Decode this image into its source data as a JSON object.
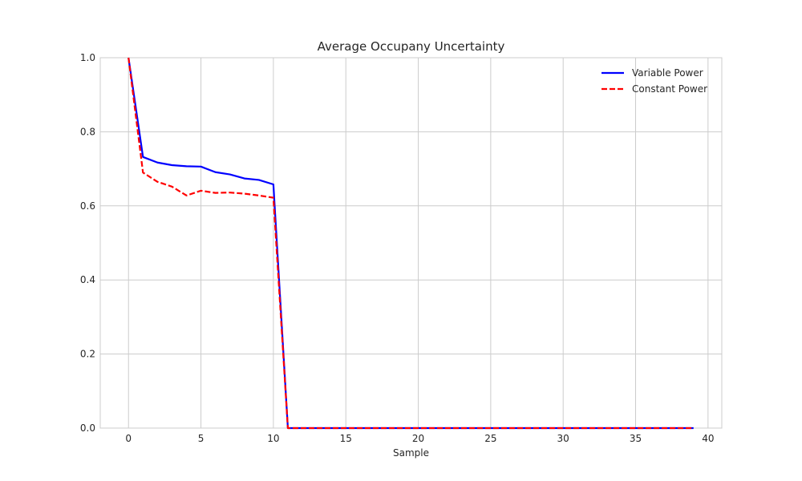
{
  "chart_data": {
    "type": "line",
    "title": "Average Occupany Uncertainty",
    "xlabel": "Sample",
    "ylabel": "",
    "xlim": [
      -1.95,
      40.95
    ],
    "ylim": [
      0.0,
      1.0
    ],
    "xticks": [
      0,
      5,
      10,
      15,
      20,
      25,
      30,
      35,
      40
    ],
    "yticks": [
      0.0,
      0.2,
      0.4,
      0.6,
      0.8,
      1.0
    ],
    "xtick_labels": [
      "0",
      "5",
      "10",
      "15",
      "20",
      "25",
      "30",
      "35",
      "40"
    ],
    "ytick_labels": [
      "0.0",
      "0.2",
      "0.4",
      "0.6",
      "0.8",
      "1.0"
    ],
    "grid": true,
    "legend_position": "top-right",
    "x": [
      0,
      1,
      2,
      3,
      4,
      5,
      6,
      7,
      8,
      9,
      10,
      11,
      12,
      13,
      14,
      15,
      16,
      17,
      18,
      19,
      20,
      21,
      22,
      23,
      24,
      25,
      26,
      27,
      28,
      29,
      30,
      31,
      32,
      33,
      34,
      35,
      36,
      37,
      38,
      39
    ],
    "series": [
      {
        "name": "Variable Power",
        "color": "#0000ff",
        "style": "solid",
        "values": [
          1.0,
          0.732,
          0.717,
          0.71,
          0.707,
          0.706,
          0.691,
          0.685,
          0.674,
          0.67,
          0.658,
          0.0,
          0,
          0,
          0,
          0,
          0,
          0,
          0,
          0,
          0,
          0,
          0,
          0,
          0,
          0,
          0,
          0,
          0,
          0,
          0,
          0,
          0,
          0,
          0,
          0,
          0,
          0,
          0,
          0
        ]
      },
      {
        "name": "Constant Power",
        "color": "#ff0000",
        "style": "dashed",
        "values": [
          1.0,
          0.69,
          0.665,
          0.652,
          0.628,
          0.641,
          0.635,
          0.636,
          0.633,
          0.628,
          0.622,
          0.0,
          0,
          0,
          0,
          0,
          0,
          0,
          0,
          0,
          0,
          0,
          0,
          0,
          0,
          0,
          0,
          0,
          0,
          0,
          0,
          0,
          0,
          0,
          0,
          0,
          0,
          0,
          0,
          0
        ]
      }
    ]
  }
}
